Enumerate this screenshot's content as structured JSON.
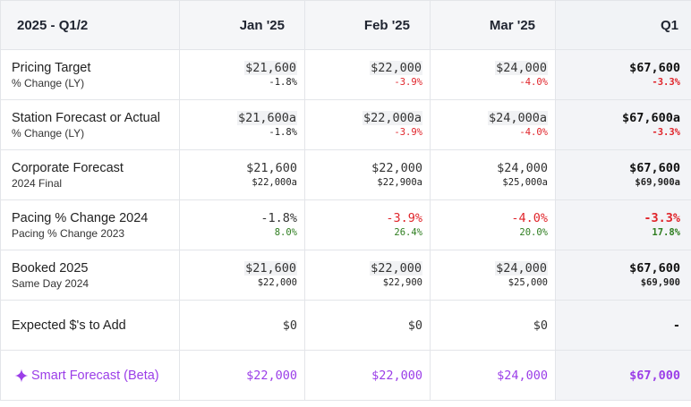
{
  "header": {
    "period": "2025 - Q1/2",
    "columns": [
      "Jan '25",
      "Feb '25",
      "Mar '25",
      "Q1"
    ]
  },
  "rows": [
    {
      "label": "Pricing Target",
      "sublabel": "% Change (LY)",
      "values": [
        "$21,600",
        "$22,000",
        "$24,000",
        "$67,600"
      ],
      "subvalues": [
        "-1.8%",
        "-3.9%",
        "-4.0%",
        "-3.3%"
      ]
    },
    {
      "label": "Station Forecast or Actual",
      "sublabel": "% Change (LY)",
      "values": [
        "$21,600a",
        "$22,000a",
        "$24,000a",
        "$67,600a"
      ],
      "subvalues": [
        "-1.8%",
        "-3.9%",
        "-4.0%",
        "-3.3%"
      ]
    },
    {
      "label": "Corporate Forecast",
      "sublabel": "2024 Final",
      "values": [
        "$21,600",
        "$22,000",
        "$24,000",
        "$67,600"
      ],
      "subvalues": [
        "$22,000a",
        "$22,900a",
        "$25,000a",
        "$69,900a"
      ]
    },
    {
      "label": "Pacing % Change 2024",
      "sublabel": "Pacing % Change 2023",
      "values": [
        "-1.8%",
        "-3.9%",
        "-4.0%",
        "-3.3%"
      ],
      "subvalues": [
        "8.0%",
        "26.4%",
        "20.0%",
        "17.8%"
      ]
    },
    {
      "label": "Booked 2025",
      "sublabel": "Same Day 2024",
      "values": [
        "$21,600",
        "$22,000",
        "$24,000",
        "$67,600"
      ],
      "subvalues": [
        "$22,000",
        "$22,900",
        "$25,000",
        "$69,900"
      ]
    },
    {
      "label": "Expected $'s to Add",
      "values": [
        "$0",
        "$0",
        "$0",
        "-"
      ]
    }
  ],
  "smart_forecast": {
    "label": "Smart Forecast (Beta)",
    "icon": "sparkle-icon",
    "values": [
      "$22,000",
      "$22,000",
      "$24,000",
      "$67,000"
    ]
  },
  "colors": {
    "negative": "#e0242a",
    "positive": "#2e7d1f",
    "smart": "#9b3ee8"
  }
}
